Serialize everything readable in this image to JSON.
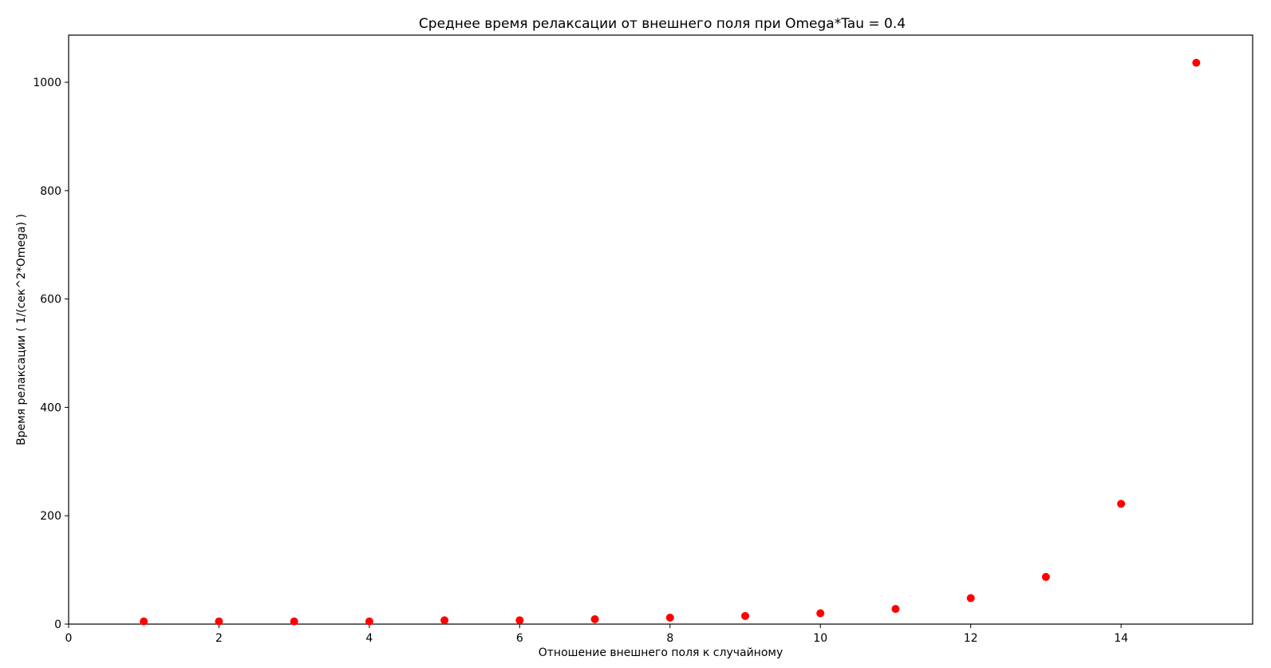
{
  "chart_data": {
    "type": "scatter",
    "title": "Среднее время релаксации от внешнего поля при Omega*Tau = 0.4",
    "xlabel": "Отношение внешнего поля к случайному",
    "ylabel": "Время релаксации ( 1/(сек^2*Omega) )",
    "xlim": [
      0,
      15.75
    ],
    "ylim": [
      0,
      1087
    ],
    "xticks": [
      0,
      2,
      4,
      6,
      8,
      10,
      12,
      14
    ],
    "yticks": [
      0,
      200,
      400,
      600,
      800,
      1000
    ],
    "grid": false,
    "series": [
      {
        "color": "#ff0000",
        "x": [
          1,
          2,
          3,
          4,
          5,
          6,
          7,
          8,
          9,
          10,
          11,
          12,
          13,
          14,
          15
        ],
        "y": [
          5,
          5,
          5,
          5,
          7,
          7,
          9,
          12,
          15,
          20,
          28,
          48,
          87,
          222,
          1036
        ]
      }
    ]
  }
}
